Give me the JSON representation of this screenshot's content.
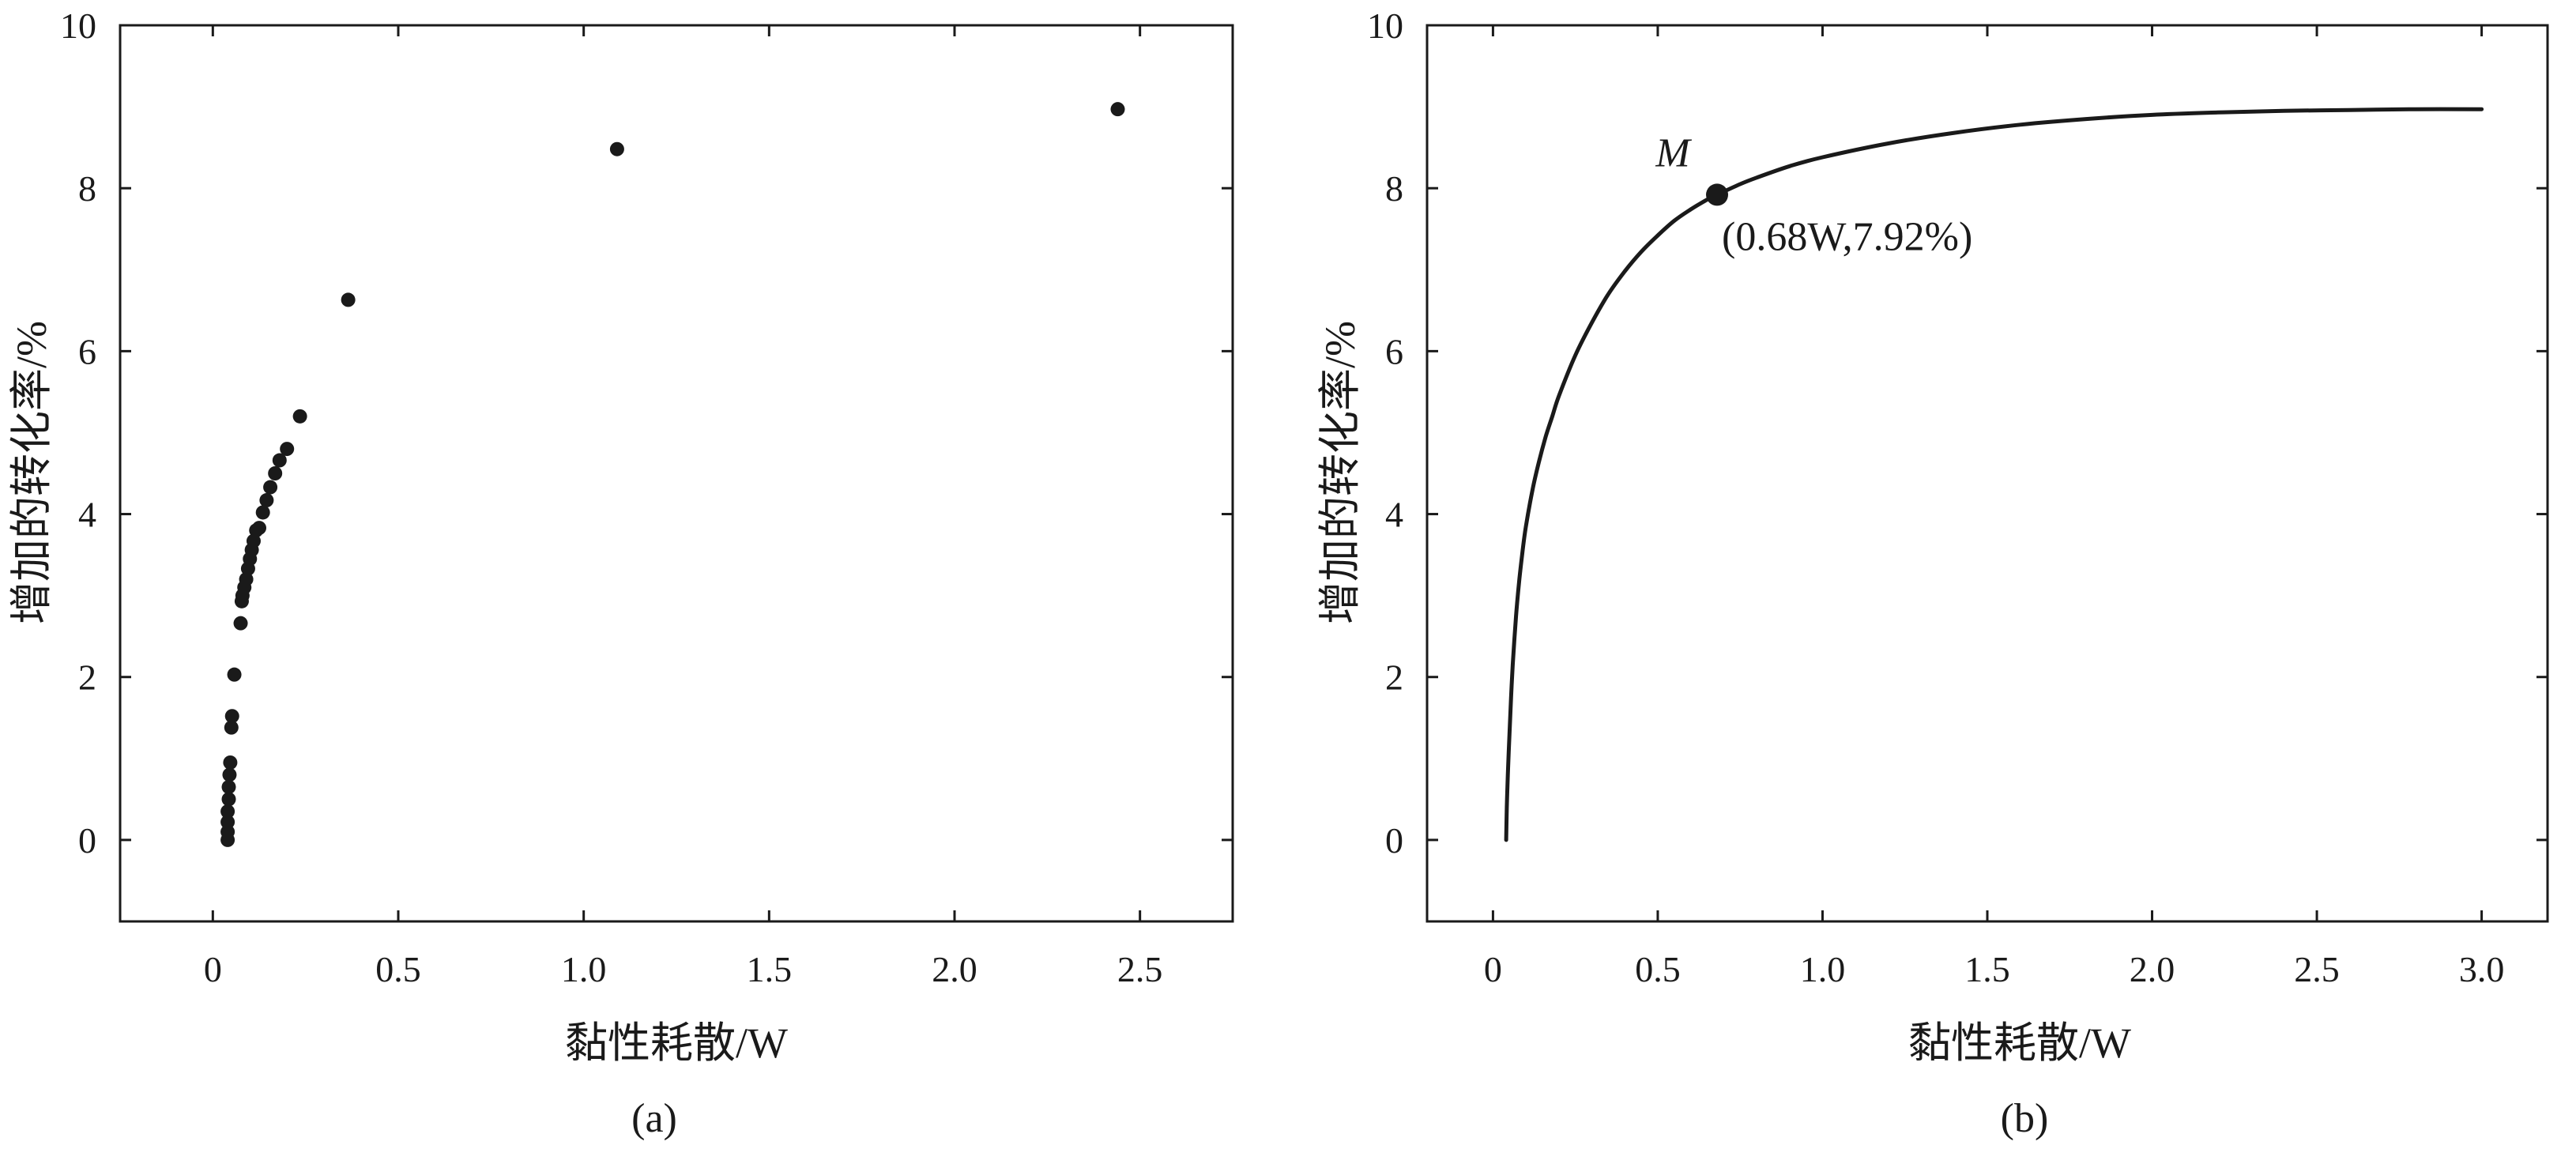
{
  "chart_data": [
    {
      "type": "scatter",
      "panel_label": "(a)",
      "xlabel": "黏性耗散/W",
      "ylabel": "增加的转化率/%",
      "xlim": [
        -0.25,
        2.75
      ],
      "ylim": [
        -1,
        10
      ],
      "xticks": [
        0,
        0.5,
        1.0,
        1.5,
        2.0,
        2.5
      ],
      "xtick_labels": [
        "0",
        "0.5",
        "1.0",
        "1.5",
        "2.0",
        "2.5"
      ],
      "yticks": [
        0,
        2,
        4,
        6,
        8,
        10
      ],
      "ytick_labels": [
        "0",
        "2",
        "4",
        "6",
        "8",
        "10"
      ],
      "grid": false,
      "marker_color": "#1a1a1a",
      "series": [
        {
          "points": [
            [
              0.04,
              0.0
            ],
            [
              0.04,
              0.1
            ],
            [
              0.04,
              0.22
            ],
            [
              0.04,
              0.35
            ],
            [
              0.043,
              0.5
            ],
            [
              0.043,
              0.65
            ],
            [
              0.045,
              0.8
            ],
            [
              0.047,
              0.95
            ],
            [
              0.05,
              1.38
            ],
            [
              0.052,
              1.52
            ],
            [
              0.058,
              2.03
            ],
            [
              0.075,
              2.66
            ],
            [
              0.078,
              2.93
            ],
            [
              0.08,
              3.0
            ],
            [
              0.085,
              3.1
            ],
            [
              0.09,
              3.2
            ],
            [
              0.095,
              3.33
            ],
            [
              0.1,
              3.45
            ],
            [
              0.105,
              3.56
            ],
            [
              0.11,
              3.67
            ],
            [
              0.117,
              3.8
            ],
            [
              0.125,
              3.83
            ],
            [
              0.135,
              4.02
            ],
            [
              0.145,
              4.17
            ],
            [
              0.155,
              4.33
            ],
            [
              0.168,
              4.5
            ],
            [
              0.18,
              4.66
            ],
            [
              0.2,
              4.8
            ],
            [
              0.235,
              5.2
            ],
            [
              0.365,
              6.63
            ],
            [
              1.09,
              8.48
            ],
            [
              2.44,
              8.97
            ]
          ]
        }
      ]
    },
    {
      "type": "line",
      "panel_label": "(b)",
      "xlabel": "黏性耗散/W",
      "ylabel": "增加的转化率/%",
      "xlim": [
        -0.2,
        3.2
      ],
      "ylim": [
        -1,
        10
      ],
      "xticks": [
        0,
        0.5,
        1.0,
        1.5,
        2.0,
        2.5,
        3.0
      ],
      "xtick_labels": [
        "0",
        "0.5",
        "1.0",
        "1.5",
        "2.0",
        "2.5",
        "3.0"
      ],
      "yticks": [
        0,
        2,
        4,
        6,
        8,
        10
      ],
      "ytick_labels": [
        "0",
        "2",
        "4",
        "6",
        "8",
        "10"
      ],
      "grid": false,
      "line_color": "#1a1a1a",
      "series": [
        {
          "x": [
            0.04,
            0.042,
            0.045,
            0.05,
            0.055,
            0.06,
            0.07,
            0.08,
            0.09,
            0.1,
            0.12,
            0.14,
            0.16,
            0.18,
            0.2,
            0.25,
            0.3,
            0.35,
            0.4,
            0.45,
            0.5,
            0.55,
            0.6,
            0.65,
            0.68,
            0.75,
            0.8,
            0.9,
            1.0,
            1.2,
            1.4,
            1.6,
            1.8,
            2.0,
            2.2,
            2.4,
            2.6,
            2.8,
            3.0
          ],
          "y": [
            0.0,
            0.4,
            0.8,
            1.3,
            1.75,
            2.15,
            2.75,
            3.2,
            3.55,
            3.85,
            4.3,
            4.65,
            4.95,
            5.2,
            5.45,
            5.95,
            6.35,
            6.7,
            6.98,
            7.22,
            7.42,
            7.6,
            7.74,
            7.86,
            7.92,
            8.05,
            8.13,
            8.27,
            8.38,
            8.55,
            8.68,
            8.78,
            8.85,
            8.9,
            8.93,
            8.95,
            8.96,
            8.97,
            8.97
          ]
        }
      ],
      "annotations": [
        {
          "letter": "M",
          "text": "(0.68W,7.92%)",
          "x": 0.68,
          "y": 7.92
        }
      ]
    }
  ]
}
